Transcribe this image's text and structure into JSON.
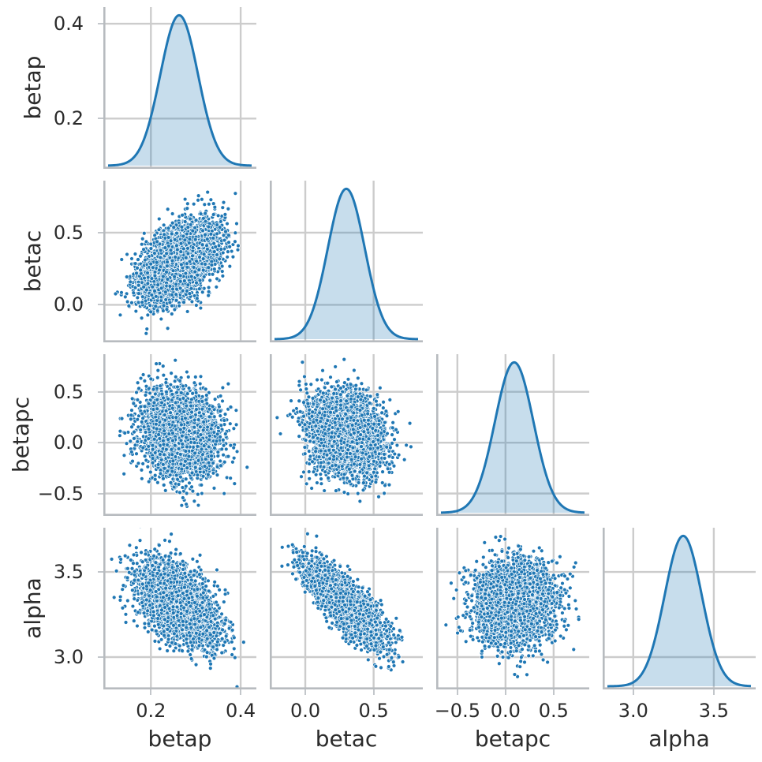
{
  "figure": {
    "background": "#ffffff",
    "description": "Corner pairplot of posterior samples: KDE densities on the diagonal, scatter panels below"
  },
  "style": {
    "accent": "#1f77b4",
    "point_color": "#1f77b4",
    "point_edge": "rgba(255,255,255,0.75)",
    "kde_line": "#1f77b4",
    "kde_fill": "rgba(31,119,180,0.25)",
    "grid_color": "#cccccc",
    "spine_color": "#b7bbbf",
    "tick_mark_color": "#c3c7cb",
    "text_color": "#2b2b2b",
    "background": "#ffffff"
  },
  "chart_data": {
    "type": "scatter",
    "subtype": "corner-pairplot",
    "grid": true,
    "diagonal": "kde",
    "points_per_panel": 4000,
    "kde_peak_fraction": 0.93,
    "variables": [
      {
        "name": "betap",
        "label": "betap",
        "range": [
          0.094,
          0.435
        ],
        "ticks": [
          0.2,
          0.4
        ],
        "tick_labels": [
          "0.2",
          "0.4"
        ],
        "mean": 0.263,
        "sd": 0.042
      },
      {
        "name": "betac",
        "label": "betac",
        "range": [
          -0.26,
          0.86
        ],
        "ticks": [
          0.0,
          0.5
        ],
        "tick_labels": [
          "0.0",
          "0.5"
        ],
        "mean": 0.3,
        "sd": 0.135
      },
      {
        "name": "betapc",
        "label": "betapc",
        "range": [
          -0.72,
          0.87
        ],
        "ticks": [
          -0.5,
          0.0,
          0.5
        ],
        "tick_labels": [
          "−0.5",
          "0.0",
          "0.5"
        ],
        "mean": 0.09,
        "sd": 0.2
      },
      {
        "name": "alpha",
        "label": "alpha",
        "range": [
          2.81,
          3.76
        ],
        "ticks": [
          3.0,
          3.5
        ],
        "tick_labels": [
          "3.0",
          "3.5"
        ],
        "mean": 3.31,
        "sd": 0.115
      }
    ],
    "panels": [
      {
        "row": 0,
        "col": 0,
        "type": "kde",
        "x": "betap"
      },
      {
        "row": 1,
        "col": 0,
        "type": "scatter",
        "x": "betap",
        "y": "betac",
        "corr": 0.45
      },
      {
        "row": 1,
        "col": 1,
        "type": "kde",
        "x": "betac"
      },
      {
        "row": 2,
        "col": 0,
        "type": "scatter",
        "x": "betap",
        "y": "betapc",
        "corr": -0.12
      },
      {
        "row": 2,
        "col": 1,
        "type": "scatter",
        "x": "betac",
        "y": "betapc",
        "corr": -0.15
      },
      {
        "row": 2,
        "col": 2,
        "type": "kde",
        "x": "betapc"
      },
      {
        "row": 3,
        "col": 0,
        "type": "scatter",
        "x": "betap",
        "y": "alpha",
        "corr": -0.48
      },
      {
        "row": 3,
        "col": 1,
        "type": "scatter",
        "x": "betac",
        "y": "alpha",
        "corr": -0.8
      },
      {
        "row": 3,
        "col": 2,
        "type": "scatter",
        "x": "betapc",
        "y": "alpha",
        "corr": 0.05
      },
      {
        "row": 3,
        "col": 3,
        "type": "kde",
        "x": "alpha"
      }
    ]
  }
}
